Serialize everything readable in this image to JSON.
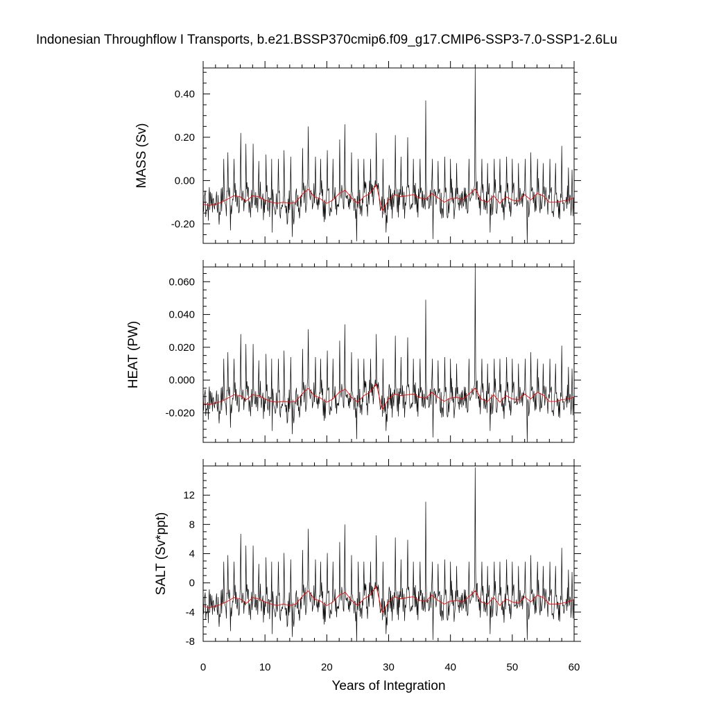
{
  "title": "Indonesian Throughflow I Transports, b.e21.BSSP370cmip6.f09_g17.CMIP6-SSP3-7.0-SSP1-2.6Lu",
  "chart_data": [
    {
      "type": "line",
      "panel": "top",
      "title": "",
      "xlabel": "",
      "ylabel": "MASS (Sv)",
      "xlim": [
        0,
        60
      ],
      "ylim": [
        -0.29,
        0.52
      ],
      "yticks": [
        0.4,
        0.2,
        0.0,
        -0.2
      ],
      "ytick_labels": [
        "0.40",
        "0.20",
        "0.00",
        "-0.20"
      ],
      "xticks": [
        0,
        10,
        20,
        30,
        40,
        50,
        60
      ],
      "baseline": -0.11,
      "noise": 0.065,
      "spikes": [
        {
          "x": 3.3,
          "y": 0.1
        },
        {
          "x": 4.0,
          "y": 0.13
        },
        {
          "x": 5.0,
          "y": 0.1
        },
        {
          "x": 6.1,
          "y": 0.22
        },
        {
          "x": 6.9,
          "y": 0.17
        },
        {
          "x": 8.1,
          "y": 0.17
        },
        {
          "x": 9.0,
          "y": 0.09
        },
        {
          "x": 10.2,
          "y": 0.12
        },
        {
          "x": 11.1,
          "y": 0.1
        },
        {
          "x": 12.2,
          "y": 0.1
        },
        {
          "x": 13.1,
          "y": 0.14
        },
        {
          "x": 14.2,
          "y": 0.11
        },
        {
          "x": 16.1,
          "y": 0.15
        },
        {
          "x": 17.0,
          "y": 0.25
        },
        {
          "x": 18.2,
          "y": 0.11
        },
        {
          "x": 19.0,
          "y": 0.1
        },
        {
          "x": 20.1,
          "y": 0.14
        },
        {
          "x": 21.0,
          "y": 0.1
        },
        {
          "x": 22.1,
          "y": 0.19
        },
        {
          "x": 22.9,
          "y": 0.26
        },
        {
          "x": 24.0,
          "y": 0.13
        },
        {
          "x": 25.1,
          "y": 0.1
        },
        {
          "x": 26.0,
          "y": 0.1
        },
        {
          "x": 27.1,
          "y": 0.1
        },
        {
          "x": 28.0,
          "y": 0.22
        },
        {
          "x": 29.1,
          "y": 0.1
        },
        {
          "x": 31.1,
          "y": 0.21
        },
        {
          "x": 32.0,
          "y": 0.11
        },
        {
          "x": 33.1,
          "y": 0.2
        },
        {
          "x": 34.0,
          "y": 0.1
        },
        {
          "x": 35.1,
          "y": 0.1
        },
        {
          "x": 36.0,
          "y": 0.37
        },
        {
          "x": 37.1,
          "y": 0.1
        },
        {
          "x": 38.0,
          "y": 0.09
        },
        {
          "x": 39.1,
          "y": 0.11
        },
        {
          "x": 40.0,
          "y": 0.1
        },
        {
          "x": 41.0,
          "y": 0.08
        },
        {
          "x": 43.0,
          "y": 0.1
        },
        {
          "x": 44.0,
          "y": 0.52
        },
        {
          "x": 45.1,
          "y": 0.1
        },
        {
          "x": 46.0,
          "y": 0.08
        },
        {
          "x": 47.1,
          "y": 0.1
        },
        {
          "x": 48.0,
          "y": 0.1
        },
        {
          "x": 49.1,
          "y": 0.11
        },
        {
          "x": 50.0,
          "y": 0.1
        },
        {
          "x": 51.0,
          "y": 0.08
        },
        {
          "x": 52.1,
          "y": 0.1
        },
        {
          "x": 53.0,
          "y": 0.13
        },
        {
          "x": 54.1,
          "y": 0.1
        },
        {
          "x": 55.0,
          "y": 0.08
        },
        {
          "x": 56.1,
          "y": 0.1
        },
        {
          "x": 57.0,
          "y": 0.08
        },
        {
          "x": 58.0,
          "y": 0.16
        },
        {
          "x": 59.1,
          "y": 0.06
        },
        {
          "x": 59.7,
          "y": 0.05
        }
      ],
      "dips": [
        {
          "x": 24.8,
          "y": -0.28
        },
        {
          "x": 37.2,
          "y": -0.27
        },
        {
          "x": 52.4,
          "y": -0.29
        },
        {
          "x": 14.4,
          "y": -0.26
        },
        {
          "x": 4.4,
          "y": -0.23
        },
        {
          "x": 11.2,
          "y": -0.24
        },
        {
          "x": 29.6,
          "y": -0.24
        },
        {
          "x": 46.4,
          "y": -0.24
        }
      ],
      "running_mean": {
        "x": [
          0,
          1,
          2,
          3,
          4,
          5,
          6,
          7,
          8,
          9,
          10,
          11,
          12,
          13,
          14,
          15,
          16,
          17,
          18,
          19,
          20,
          21,
          22,
          23,
          24,
          25,
          26,
          27,
          28,
          29,
          30,
          31,
          32,
          33,
          34,
          35,
          36,
          37,
          38,
          39,
          40,
          41,
          42,
          43,
          44,
          45,
          46,
          47,
          48,
          49,
          50,
          51,
          52,
          53,
          54,
          55,
          56,
          57,
          58,
          59,
          60
        ],
        "y": [
          -0.11,
          -0.115,
          -0.11,
          -0.1,
          -0.085,
          -0.07,
          -0.075,
          -0.095,
          -0.07,
          -0.075,
          -0.09,
          -0.1,
          -0.105,
          -0.1,
          -0.105,
          -0.1,
          -0.065,
          -0.04,
          -0.075,
          -0.085,
          -0.105,
          -0.09,
          -0.06,
          -0.045,
          -0.08,
          -0.105,
          -0.075,
          -0.06,
          -0.02,
          -0.14,
          -0.09,
          -0.065,
          -0.075,
          -0.07,
          -0.065,
          -0.08,
          -0.085,
          -0.06,
          -0.08,
          -0.1,
          -0.085,
          -0.08,
          -0.09,
          -0.065,
          -0.04,
          -0.09,
          -0.1,
          -0.07,
          -0.105,
          -0.075,
          -0.09,
          -0.095,
          -0.065,
          -0.09,
          -0.06,
          -0.07,
          -0.1,
          -0.1,
          -0.095,
          -0.09,
          -0.08
        ]
      }
    },
    {
      "type": "line",
      "panel": "middle",
      "title": "",
      "xlabel": "",
      "ylabel": "HEAT (PW)",
      "xlim": [
        0,
        60
      ],
      "ylim": [
        -0.038,
        0.069
      ],
      "yticks": [
        0.06,
        0.04,
        0.02,
        0.0,
        -0.02
      ],
      "ytick_labels": [
        "0.060",
        "0.040",
        "0.020",
        "0.000",
        "-0.020"
      ],
      "xticks": [
        0,
        10,
        20,
        30,
        40,
        50,
        60
      ],
      "baseline": -0.0145,
      "noise": 0.0085,
      "spikes": [
        {
          "x": 3.3,
          "y": 0.013
        },
        {
          "x": 4.0,
          "y": 0.017
        },
        {
          "x": 5.0,
          "y": 0.013
        },
        {
          "x": 6.1,
          "y": 0.028
        },
        {
          "x": 6.9,
          "y": 0.022
        },
        {
          "x": 8.1,
          "y": 0.022
        },
        {
          "x": 9.0,
          "y": 0.012
        },
        {
          "x": 10.2,
          "y": 0.016
        },
        {
          "x": 11.1,
          "y": 0.013
        },
        {
          "x": 12.2,
          "y": 0.013
        },
        {
          "x": 13.1,
          "y": 0.018
        },
        {
          "x": 14.2,
          "y": 0.014
        },
        {
          "x": 16.1,
          "y": 0.019
        },
        {
          "x": 17.0,
          "y": 0.031
        },
        {
          "x": 18.2,
          "y": 0.014
        },
        {
          "x": 19.0,
          "y": 0.013
        },
        {
          "x": 20.1,
          "y": 0.018
        },
        {
          "x": 21.0,
          "y": 0.013
        },
        {
          "x": 22.1,
          "y": 0.024
        },
        {
          "x": 22.9,
          "y": 0.034
        },
        {
          "x": 24.0,
          "y": 0.017
        },
        {
          "x": 25.1,
          "y": 0.013
        },
        {
          "x": 26.0,
          "y": 0.013
        },
        {
          "x": 27.1,
          "y": 0.013
        },
        {
          "x": 28.0,
          "y": 0.028
        },
        {
          "x": 29.1,
          "y": 0.013
        },
        {
          "x": 31.1,
          "y": 0.027
        },
        {
          "x": 32.0,
          "y": 0.014
        },
        {
          "x": 33.1,
          "y": 0.026
        },
        {
          "x": 34.0,
          "y": 0.013
        },
        {
          "x": 35.1,
          "y": 0.013
        },
        {
          "x": 36.0,
          "y": 0.049
        },
        {
          "x": 37.1,
          "y": 0.013
        },
        {
          "x": 38.0,
          "y": 0.012
        },
        {
          "x": 39.1,
          "y": 0.014
        },
        {
          "x": 40.0,
          "y": 0.013
        },
        {
          "x": 41.0,
          "y": 0.01
        },
        {
          "x": 43.0,
          "y": 0.013
        },
        {
          "x": 44.0,
          "y": 0.069
        },
        {
          "x": 45.1,
          "y": 0.013
        },
        {
          "x": 46.0,
          "y": 0.01
        },
        {
          "x": 47.1,
          "y": 0.013
        },
        {
          "x": 48.0,
          "y": 0.013
        },
        {
          "x": 49.1,
          "y": 0.014
        },
        {
          "x": 50.0,
          "y": 0.013
        },
        {
          "x": 51.0,
          "y": 0.01
        },
        {
          "x": 52.1,
          "y": 0.013
        },
        {
          "x": 53.0,
          "y": 0.017
        },
        {
          "x": 54.1,
          "y": 0.013
        },
        {
          "x": 55.0,
          "y": 0.01
        },
        {
          "x": 56.1,
          "y": 0.013
        },
        {
          "x": 57.0,
          "y": 0.01
        },
        {
          "x": 58.0,
          "y": 0.021
        },
        {
          "x": 59.1,
          "y": 0.008
        },
        {
          "x": 59.7,
          "y": 0.007
        }
      ],
      "dips": [
        {
          "x": 24.8,
          "y": -0.036
        },
        {
          "x": 37.2,
          "y": -0.035
        },
        {
          "x": 52.4,
          "y": -0.038
        },
        {
          "x": 14.4,
          "y": -0.033
        },
        {
          "x": 4.4,
          "y": -0.029
        },
        {
          "x": 11.2,
          "y": -0.031
        },
        {
          "x": 29.6,
          "y": -0.031
        },
        {
          "x": 46.4,
          "y": -0.031
        }
      ],
      "running_mean": {
        "x": [
          0,
          1,
          2,
          3,
          4,
          5,
          6,
          7,
          8,
          9,
          10,
          11,
          12,
          13,
          14,
          15,
          16,
          17,
          18,
          19,
          20,
          21,
          22,
          23,
          24,
          25,
          26,
          27,
          28,
          29,
          30,
          31,
          32,
          33,
          34,
          35,
          36,
          37,
          38,
          39,
          40,
          41,
          42,
          43,
          44,
          45,
          46,
          47,
          48,
          49,
          50,
          51,
          52,
          53,
          54,
          55,
          56,
          57,
          58,
          59,
          60
        ],
        "y": [
          -0.014,
          -0.015,
          -0.014,
          -0.013,
          -0.011,
          -0.009,
          -0.0095,
          -0.012,
          -0.009,
          -0.0095,
          -0.0115,
          -0.013,
          -0.0135,
          -0.013,
          -0.0135,
          -0.013,
          -0.0085,
          -0.005,
          -0.0095,
          -0.011,
          -0.0135,
          -0.0115,
          -0.0075,
          -0.0055,
          -0.0105,
          -0.0135,
          -0.0095,
          -0.0075,
          -0.0025,
          -0.018,
          -0.0115,
          -0.0085,
          -0.0095,
          -0.009,
          -0.0085,
          -0.0105,
          -0.011,
          -0.0075,
          -0.0105,
          -0.013,
          -0.011,
          -0.0105,
          -0.0115,
          -0.0085,
          -0.005,
          -0.0115,
          -0.013,
          -0.009,
          -0.0135,
          -0.0095,
          -0.0115,
          -0.012,
          -0.0085,
          -0.0115,
          -0.0075,
          -0.009,
          -0.013,
          -0.013,
          -0.012,
          -0.0115,
          -0.0105
        ]
      }
    },
    {
      "type": "line",
      "panel": "bottom",
      "title": "",
      "xlabel": "Years of Integration",
      "ylabel": "SALT (Sv*ppt)",
      "xlim": [
        0,
        60
      ],
      "ylim": [
        -8,
        16
      ],
      "yticks": [
        12,
        8,
        4,
        0,
        -4,
        -8
      ],
      "ytick_labels": [
        "12",
        "8",
        "4",
        "0",
        "-4",
        "-8"
      ],
      "xticks": [
        0,
        10,
        20,
        30,
        40,
        50,
        60
      ],
      "xtick_labels": [
        "0",
        "10",
        "20",
        "30",
        "40",
        "50",
        "60"
      ],
      "baseline": -3.3,
      "noise": 1.95,
      "spikes": [
        {
          "x": 3.3,
          "y": 2.9
        },
        {
          "x": 4.0,
          "y": 3.8
        },
        {
          "x": 5.0,
          "y": 2.9
        },
        {
          "x": 6.1,
          "y": 6.7
        },
        {
          "x": 6.9,
          "y": 5.1
        },
        {
          "x": 8.1,
          "y": 5.1
        },
        {
          "x": 9.0,
          "y": 2.6
        },
        {
          "x": 10.2,
          "y": 3.5
        },
        {
          "x": 11.1,
          "y": 2.9
        },
        {
          "x": 12.2,
          "y": 2.9
        },
        {
          "x": 13.1,
          "y": 4.1
        },
        {
          "x": 14.2,
          "y": 3.2
        },
        {
          "x": 16.1,
          "y": 4.5
        },
        {
          "x": 17.0,
          "y": 7.4
        },
        {
          "x": 18.2,
          "y": 3.2
        },
        {
          "x": 19.0,
          "y": 2.9
        },
        {
          "x": 20.1,
          "y": 4.1
        },
        {
          "x": 21.0,
          "y": 2.9
        },
        {
          "x": 22.1,
          "y": 5.6
        },
        {
          "x": 22.9,
          "y": 8.0
        },
        {
          "x": 24.0,
          "y": 3.8
        },
        {
          "x": 25.1,
          "y": 2.9
        },
        {
          "x": 26.0,
          "y": 2.9
        },
        {
          "x": 27.1,
          "y": 2.9
        },
        {
          "x": 28.0,
          "y": 6.5
        },
        {
          "x": 29.1,
          "y": 2.9
        },
        {
          "x": 31.1,
          "y": 6.2
        },
        {
          "x": 32.0,
          "y": 3.2
        },
        {
          "x": 33.1,
          "y": 5.9
        },
        {
          "x": 34.0,
          "y": 2.9
        },
        {
          "x": 35.1,
          "y": 2.9
        },
        {
          "x": 36.0,
          "y": 11.1
        },
        {
          "x": 37.1,
          "y": 2.9
        },
        {
          "x": 38.0,
          "y": 2.6
        },
        {
          "x": 39.1,
          "y": 3.2
        },
        {
          "x": 40.0,
          "y": 2.9
        },
        {
          "x": 41.0,
          "y": 2.3
        },
        {
          "x": 43.0,
          "y": 2.9
        },
        {
          "x": 44.0,
          "y": 15.8
        },
        {
          "x": 45.1,
          "y": 2.9
        },
        {
          "x": 46.0,
          "y": 2.3
        },
        {
          "x": 47.1,
          "y": 2.9
        },
        {
          "x": 48.0,
          "y": 2.9
        },
        {
          "x": 49.1,
          "y": 3.2
        },
        {
          "x": 50.0,
          "y": 2.9
        },
        {
          "x": 51.0,
          "y": 2.3
        },
        {
          "x": 52.1,
          "y": 2.9
        },
        {
          "x": 53.0,
          "y": 3.8
        },
        {
          "x": 54.1,
          "y": 2.9
        },
        {
          "x": 55.0,
          "y": 2.3
        },
        {
          "x": 56.1,
          "y": 2.9
        },
        {
          "x": 57.0,
          "y": 2.3
        },
        {
          "x": 58.0,
          "y": 4.8
        },
        {
          "x": 59.1,
          "y": 1.8
        },
        {
          "x": 59.7,
          "y": 1.5
        }
      ],
      "dips": [
        {
          "x": 24.8,
          "y": -8.0
        },
        {
          "x": 37.2,
          "y": -7.8
        },
        {
          "x": 52.4,
          "y": -7.8
        },
        {
          "x": 14.4,
          "y": -7.4
        },
        {
          "x": 4.4,
          "y": -6.6
        },
        {
          "x": 11.2,
          "y": -7.0
        },
        {
          "x": 29.6,
          "y": -7.0
        },
        {
          "x": 46.4,
          "y": -7.0
        }
      ],
      "running_mean": {
        "x": [
          0,
          1,
          2,
          3,
          4,
          5,
          6,
          7,
          8,
          9,
          10,
          11,
          12,
          13,
          14,
          15,
          16,
          17,
          18,
          19,
          20,
          21,
          22,
          23,
          24,
          25,
          26,
          27,
          28,
          29,
          30,
          31,
          32,
          33,
          34,
          35,
          36,
          37,
          38,
          39,
          40,
          41,
          42,
          43,
          44,
          45,
          46,
          47,
          48,
          49,
          50,
          51,
          52,
          53,
          54,
          55,
          56,
          57,
          58,
          59,
          60
        ],
        "y": [
          -3.2,
          -3.4,
          -3.2,
          -2.9,
          -2.5,
          -2.0,
          -2.2,
          -2.8,
          -2.0,
          -2.2,
          -2.6,
          -2.9,
          -3.1,
          -2.9,
          -3.1,
          -2.9,
          -1.9,
          -1.1,
          -2.2,
          -2.5,
          -3.1,
          -2.6,
          -1.7,
          -1.3,
          -2.4,
          -3.1,
          -2.2,
          -1.7,
          -0.5,
          -4.1,
          -2.6,
          -1.9,
          -2.2,
          -2.0,
          -1.9,
          -2.4,
          -2.5,
          -1.7,
          -2.4,
          -2.9,
          -2.5,
          -2.4,
          -2.6,
          -1.9,
          -1.1,
          -2.6,
          -2.9,
          -2.0,
          -3.1,
          -2.2,
          -2.6,
          -2.8,
          -1.9,
          -2.6,
          -1.7,
          -2.0,
          -2.9,
          -2.9,
          -2.8,
          -2.6,
          -2.3
        ]
      }
    }
  ],
  "colors": {
    "series": "#000000",
    "running_mean": "#ff0000",
    "axes": "#000000"
  }
}
